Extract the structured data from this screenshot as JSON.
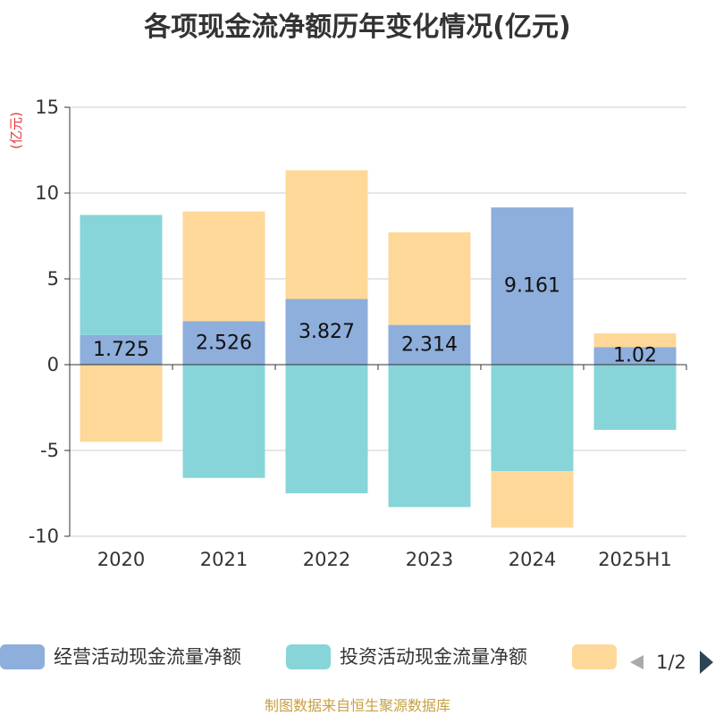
{
  "chart_data": {
    "type": "bar",
    "stacked": true,
    "title": "各项现金流净额历年变化情况(亿元)",
    "unit_label": "(亿元)",
    "categories": [
      "2020",
      "2021",
      "2022",
      "2023",
      "2024",
      "2025H1"
    ],
    "ylim": [
      -10,
      15
    ],
    "yticks": [
      15,
      10,
      5,
      0,
      -5,
      -10
    ],
    "grid": true,
    "series": [
      {
        "name": "经营活动现金流量净额",
        "color": "#8eaedb",
        "values": [
          1.725,
          2.526,
          3.827,
          2.314,
          9.161,
          1.02
        ],
        "labels": [
          "1.725",
          "2.526",
          "3.827",
          "2.314",
          "9.161",
          "1.02"
        ]
      },
      {
        "name": "投资活动现金流量净额",
        "color": "#87d5d8",
        "values": [
          7.0,
          -6.6,
          -7.5,
          -8.3,
          -6.2,
          -3.8
        ]
      },
      {
        "name": "",
        "color": "#fed899",
        "values": [
          -4.5,
          6.4,
          7.5,
          5.4,
          -3.3,
          0.8
        ]
      }
    ],
    "legend": {
      "position": "bottom",
      "page": "1/2"
    },
    "source": "制图数据来自恒生聚源数据库"
  }
}
